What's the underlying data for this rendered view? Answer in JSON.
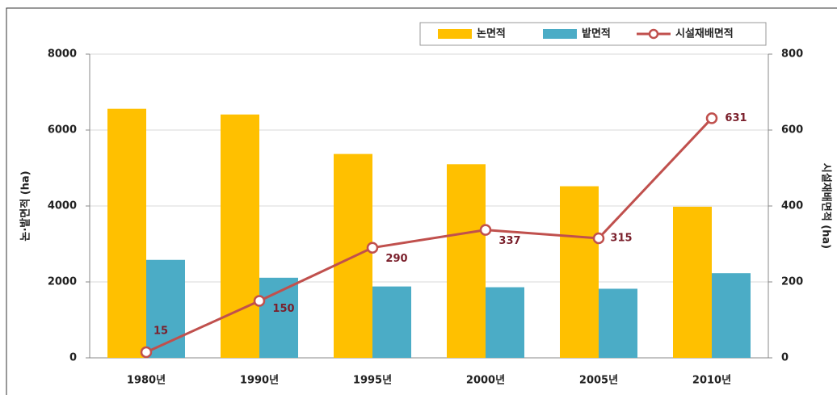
{
  "chart_data": {
    "type": "bar_line",
    "categories": [
      "1980년",
      "1990년",
      "1995년",
      "2000년",
      "2005년",
      "2010년"
    ],
    "series": [
      {
        "name": "논면적",
        "color": "#ffc000",
        "type": "bar",
        "values": [
          6560,
          6410,
          5370,
          5100,
          4520,
          3980
        ]
      },
      {
        "name": "밭면적",
        "color": "#4bacc6",
        "type": "bar",
        "values": [
          2580,
          2110,
          1880,
          1860,
          1820,
          2230
        ]
      },
      {
        "name": "시설재배면적",
        "color": "#c0504d",
        "type": "line",
        "axis": "y2",
        "values": [
          15,
          150,
          290,
          337,
          315,
          631
        ]
      }
    ],
    "ylabel": "논·밭면적 (ha)",
    "y2label": "시설재배면적 (ha)",
    "ylim": [
      0,
      8000
    ],
    "yticks": [
      0,
      2000,
      4000,
      6000,
      8000
    ],
    "y2lim": [
      0,
      800
    ],
    "y2ticks": [
      0,
      200,
      400,
      600,
      800
    ],
    "grid": true,
    "legend": "top-right"
  }
}
